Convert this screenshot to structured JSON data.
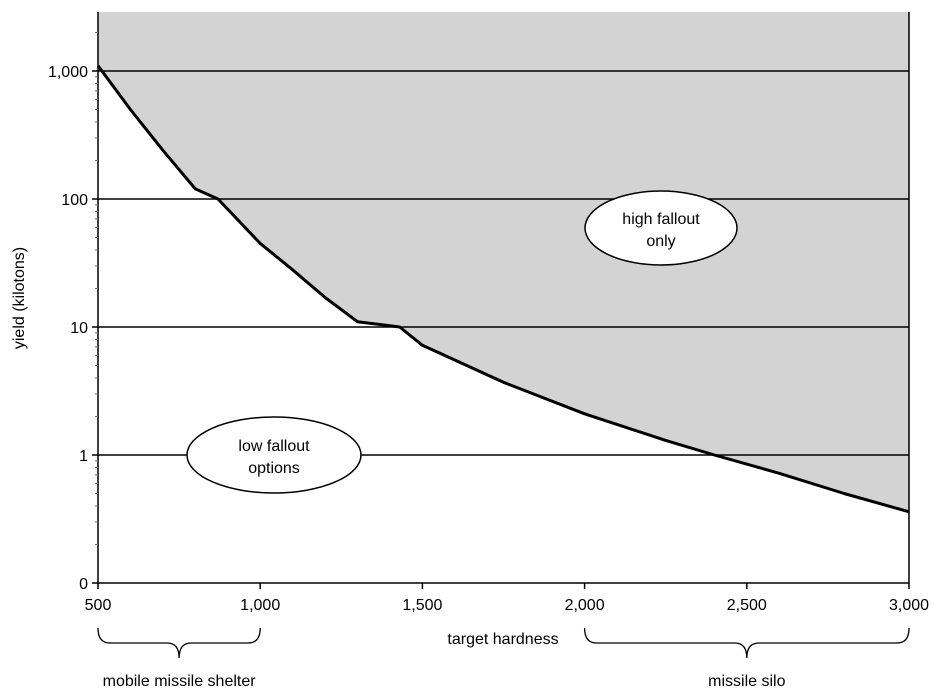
{
  "chart_data": {
    "type": "line",
    "title": "",
    "xlabel": "target hardness",
    "ylabel": "yield (kilotons)",
    "y_scale": "log",
    "grid": "horizontal",
    "xlim": [
      500,
      3000
    ],
    "ylim": [
      0.1,
      3000
    ],
    "x_ticks": [
      500,
      1000,
      1500,
      2000,
      2500,
      3000
    ],
    "x_tick_labels": [
      "500",
      "1,000",
      "1,500",
      "2,000",
      "2,500",
      "3,000"
    ],
    "y_ticks": [
      0.1,
      1,
      10,
      100,
      1000
    ],
    "y_tick_labels": [
      "0",
      "1",
      "10",
      "100",
      "1,000"
    ],
    "series": [
      {
        "name": "",
        "color": "#000000",
        "fill_above": "#d3d3d3",
        "x": [
          500,
          600,
          700,
          800,
          870,
          1000,
          1100,
          1200,
          1300,
          1430,
          1500,
          1750,
          2000,
          2250,
          2400,
          2600,
          2800,
          3000
        ],
        "y": [
          1100,
          500,
          240,
          120,
          100,
          45,
          28,
          17,
          11,
          10,
          7.2,
          3.7,
          2.1,
          1.3,
          1.0,
          0.72,
          0.5,
          0.36
        ]
      }
    ],
    "annotations": [
      {
        "name": "high-fallout",
        "lines": [
          "high fallout",
          "only"
        ]
      },
      {
        "name": "low-fallout",
        "lines": [
          "low fallout",
          "options"
        ]
      }
    ],
    "ranges": [
      {
        "name": "mobile-missile-shelter",
        "label": "mobile missile shelter",
        "from": 500,
        "to": 1000
      },
      {
        "name": "missile-silo",
        "label": "missile silo",
        "from": 2000,
        "to": 3000
      }
    ]
  }
}
